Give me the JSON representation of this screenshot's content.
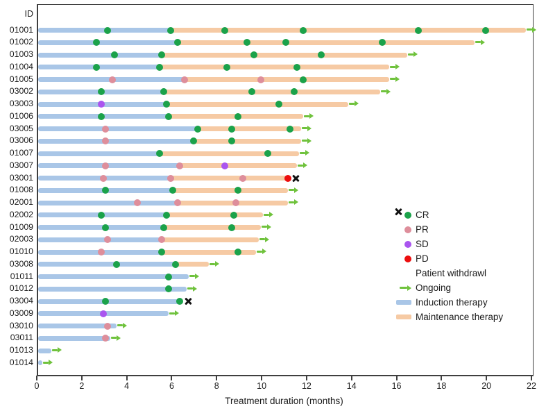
{
  "y_axis": {
    "header": "ID"
  },
  "x_axis": {
    "label": "Treatment duration (months)",
    "ticks": [
      0,
      2,
      4,
      6,
      8,
      10,
      12,
      14,
      16,
      18,
      20,
      22
    ],
    "max": 22
  },
  "colors": {
    "cr": "#1ba24a",
    "pr": "#de8e9b",
    "sd": "#aa55ef",
    "pd": "#ec0e0e",
    "induction": "#a9c6e7",
    "maintenance": "#f6caa4",
    "arrow": "#6fc23c",
    "frame": "#3f3f3f",
    "text": "#1a1a1a"
  },
  "legend": [
    {
      "marker": "dot",
      "color_key": "cr",
      "label": "CR"
    },
    {
      "marker": "dot",
      "color_key": "pr",
      "label": "PR"
    },
    {
      "marker": "dot",
      "color_key": "sd",
      "label": "SD"
    },
    {
      "marker": "dot",
      "color_key": "pd",
      "label": "PD"
    },
    {
      "marker": "x",
      "color_key": "text",
      "label": "Patient withdrawl"
    },
    {
      "marker": "arrow",
      "color_key": "arrow",
      "label": "Ongoing"
    },
    {
      "marker": "bar",
      "color_key": "induction",
      "label": "Induction therapy"
    },
    {
      "marker": "bar",
      "color_key": "maintenance",
      "label": "Maintenance therapy"
    }
  ],
  "chart_data": {
    "type": "bar",
    "subtype": "swimmer",
    "xlabel": "Treatment duration (months)",
    "xlim": [
      0,
      22
    ],
    "legend_position": "right-middle",
    "patients": [
      {
        "id": "01001",
        "induction_end": 5.9,
        "end": 21.7,
        "status": "ongoing",
        "events": [
          {
            "t": 3.1,
            "type": "CR"
          },
          {
            "t": 5.9,
            "type": "CR"
          },
          {
            "t": 8.3,
            "type": "CR"
          },
          {
            "t": 11.8,
            "type": "CR"
          },
          {
            "t": 16.9,
            "type": "CR"
          },
          {
            "t": 19.9,
            "type": "CR"
          }
        ]
      },
      {
        "id": "01002",
        "induction_end": 6.2,
        "end": 19.4,
        "status": "ongoing",
        "events": [
          {
            "t": 2.6,
            "type": "CR"
          },
          {
            "t": 6.2,
            "type": "CR"
          },
          {
            "t": 9.3,
            "type": "CR"
          },
          {
            "t": 11.0,
            "type": "CR"
          },
          {
            "t": 15.3,
            "type": "CR"
          }
        ]
      },
      {
        "id": "01003",
        "induction_end": 5.5,
        "end": 16.4,
        "status": "ongoing",
        "events": [
          {
            "t": 3.4,
            "type": "CR"
          },
          {
            "t": 5.5,
            "type": "CR"
          },
          {
            "t": 9.6,
            "type": "CR"
          },
          {
            "t": 12.6,
            "type": "CR"
          }
        ]
      },
      {
        "id": "01004",
        "induction_end": 5.4,
        "end": 15.6,
        "status": "ongoing",
        "events": [
          {
            "t": 2.6,
            "type": "CR"
          },
          {
            "t": 5.4,
            "type": "CR"
          },
          {
            "t": 8.4,
            "type": "CR"
          },
          {
            "t": 11.5,
            "type": "CR"
          }
        ]
      },
      {
        "id": "01005",
        "induction_end": 6.5,
        "end": 15.6,
        "status": "ongoing",
        "events": [
          {
            "t": 3.3,
            "type": "PR"
          },
          {
            "t": 6.5,
            "type": "PR"
          },
          {
            "t": 9.9,
            "type": "PR"
          },
          {
            "t": 11.8,
            "type": "CR"
          }
        ]
      },
      {
        "id": "03002",
        "induction_end": 5.6,
        "end": 15.2,
        "status": "ongoing",
        "events": [
          {
            "t": 2.8,
            "type": "CR"
          },
          {
            "t": 5.6,
            "type": "CR"
          },
          {
            "t": 9.5,
            "type": "CR"
          },
          {
            "t": 11.4,
            "type": "CR"
          }
        ]
      },
      {
        "id": "03003",
        "induction_end": 5.7,
        "end": 13.8,
        "status": "ongoing",
        "events": [
          {
            "t": 2.8,
            "type": "SD"
          },
          {
            "t": 5.7,
            "type": "CR"
          },
          {
            "t": 10.7,
            "type": "CR"
          }
        ]
      },
      {
        "id": "01006",
        "induction_end": 5.8,
        "end": 11.8,
        "status": "ongoing",
        "events": [
          {
            "t": 2.8,
            "type": "CR"
          },
          {
            "t": 5.8,
            "type": "CR"
          },
          {
            "t": 8.9,
            "type": "CR"
          }
        ]
      },
      {
        "id": "03005",
        "induction_end": 7.1,
        "end": 11.7,
        "status": "ongoing",
        "events": [
          {
            "t": 3.0,
            "type": "PR"
          },
          {
            "t": 7.1,
            "type": "CR"
          },
          {
            "t": 8.6,
            "type": "CR"
          },
          {
            "t": 11.2,
            "type": "CR"
          }
        ]
      },
      {
        "id": "03006",
        "induction_end": 6.9,
        "end": 11.7,
        "status": "ongoing",
        "events": [
          {
            "t": 3.0,
            "type": "PR"
          },
          {
            "t": 6.9,
            "type": "CR"
          },
          {
            "t": 8.6,
            "type": "CR"
          }
        ]
      },
      {
        "id": "01007",
        "induction_end": 5.4,
        "end": 11.6,
        "status": "ongoing",
        "events": [
          {
            "t": 5.4,
            "type": "CR"
          },
          {
            "t": 10.2,
            "type": "CR"
          }
        ]
      },
      {
        "id": "03007",
        "induction_end": 6.3,
        "end": 11.5,
        "status": "ongoing",
        "events": [
          {
            "t": 3.0,
            "type": "PR"
          },
          {
            "t": 6.3,
            "type": "PR"
          },
          {
            "t": 8.3,
            "type": "SD"
          }
        ]
      },
      {
        "id": "03001",
        "induction_end": 5.9,
        "end": 11.2,
        "status": "withdrawal",
        "events": [
          {
            "t": 2.9,
            "type": "PR"
          },
          {
            "t": 5.9,
            "type": "PR"
          },
          {
            "t": 9.1,
            "type": "PR"
          },
          {
            "t": 11.1,
            "type": "PD"
          }
        ]
      },
      {
        "id": "01008",
        "induction_end": 6.0,
        "end": 11.1,
        "status": "ongoing",
        "events": [
          {
            "t": 3.0,
            "type": "CR"
          },
          {
            "t": 6.0,
            "type": "CR"
          },
          {
            "t": 8.9,
            "type": "CR"
          }
        ]
      },
      {
        "id": "02001",
        "induction_end": 6.2,
        "end": 11.1,
        "status": "ongoing",
        "events": [
          {
            "t": 4.4,
            "type": "PR"
          },
          {
            "t": 6.2,
            "type": "PR"
          },
          {
            "t": 8.8,
            "type": "PR"
          }
        ]
      },
      {
        "id": "02002",
        "induction_end": 5.7,
        "end": 10.0,
        "status": "ongoing",
        "events": [
          {
            "t": 2.8,
            "type": "CR"
          },
          {
            "t": 5.7,
            "type": "CR"
          },
          {
            "t": 8.7,
            "type": "CR"
          }
        ]
      },
      {
        "id": "01009",
        "induction_end": 5.6,
        "end": 9.9,
        "status": "ongoing",
        "events": [
          {
            "t": 3.0,
            "type": "CR"
          },
          {
            "t": 5.6,
            "type": "CR"
          },
          {
            "t": 8.6,
            "type": "CR"
          }
        ]
      },
      {
        "id": "02003",
        "induction_end": 5.5,
        "end": 9.8,
        "status": "ongoing",
        "events": [
          {
            "t": 3.1,
            "type": "PR"
          },
          {
            "t": 5.5,
            "type": "PR"
          }
        ]
      },
      {
        "id": "01010",
        "induction_end": 5.5,
        "end": 9.7,
        "status": "ongoing",
        "events": [
          {
            "t": 2.8,
            "type": "PR"
          },
          {
            "t": 5.5,
            "type": "CR"
          },
          {
            "t": 8.9,
            "type": "CR"
          }
        ]
      },
      {
        "id": "03008",
        "induction_end": 6.1,
        "end": 7.6,
        "status": "ongoing",
        "events": [
          {
            "t": 3.5,
            "type": "CR"
          },
          {
            "t": 6.1,
            "type": "CR"
          }
        ]
      },
      {
        "id": "01011",
        "induction_end": 6.7,
        "end": 6.7,
        "status": "ongoing",
        "events": [
          {
            "t": 5.8,
            "type": "CR"
          }
        ]
      },
      {
        "id": "01012",
        "induction_end": 6.6,
        "end": 6.6,
        "status": "ongoing",
        "events": [
          {
            "t": 5.8,
            "type": "CR"
          }
        ]
      },
      {
        "id": "03004",
        "induction_end": 6.4,
        "end": 6.4,
        "status": "withdrawal",
        "events": [
          {
            "t": 3.0,
            "type": "CR"
          },
          {
            "t": 6.3,
            "type": "CR"
          }
        ]
      },
      {
        "id": "03009",
        "induction_end": 5.8,
        "end": 5.8,
        "status": "ongoing",
        "events": [
          {
            "t": 2.9,
            "type": "SD"
          }
        ]
      },
      {
        "id": "03010",
        "induction_end": 3.5,
        "end": 3.5,
        "status": "ongoing",
        "events": [
          {
            "t": 3.1,
            "type": "PR"
          }
        ]
      },
      {
        "id": "03011",
        "induction_end": 3.2,
        "end": 3.2,
        "status": "ongoing",
        "events": [
          {
            "t": 3.0,
            "type": "PR"
          }
        ]
      },
      {
        "id": "01013",
        "induction_end": 0.6,
        "end": 0.6,
        "status": "ongoing",
        "events": []
      },
      {
        "id": "01014",
        "induction_end": 0.2,
        "end": 0.2,
        "status": "ongoing",
        "events": []
      }
    ]
  }
}
